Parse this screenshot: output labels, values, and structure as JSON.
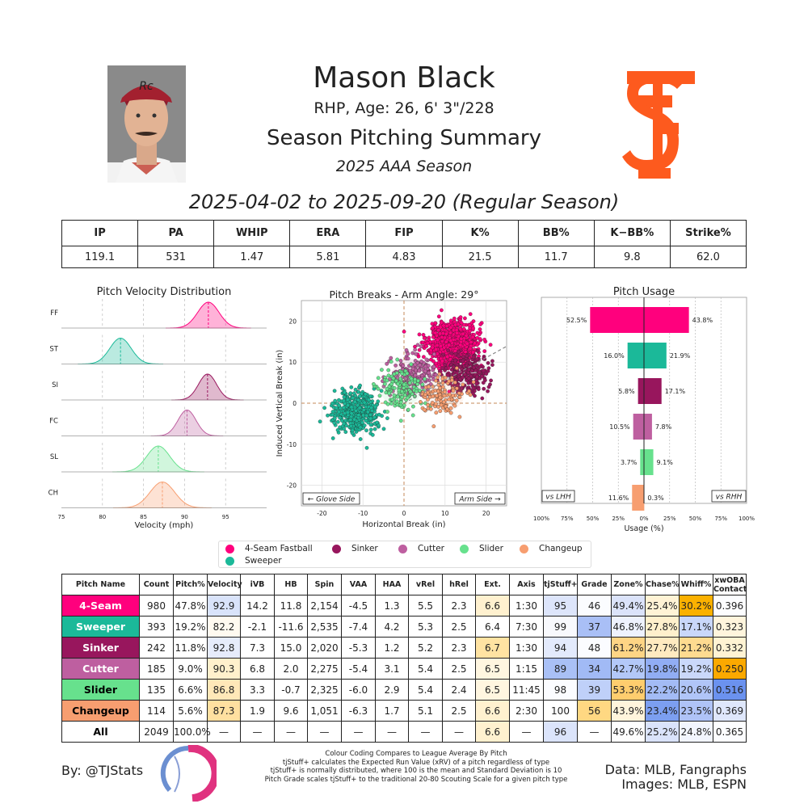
{
  "header": {
    "name": "Mason Black",
    "info": "RHP, Age: 26, 6' 3\"/228",
    "title": "Season Pitching Summary",
    "season": "2025 AAA Season",
    "date_range": "2025-04-02 to 2025-09-20 (Regular Season)"
  },
  "summary_stats": {
    "headers": [
      "IP",
      "PA",
      "WHIP",
      "ERA",
      "FIP",
      "K%",
      "BB%",
      "K−BB%",
      "Strike%"
    ],
    "values": [
      "119.1",
      "531",
      "1.47",
      "5.81",
      "4.83",
      "21.5",
      "11.7",
      "9.8",
      "62.0"
    ]
  },
  "colors": {
    "ff": "#FF007D",
    "st": "#1BB999",
    "si": "#98165D",
    "fc": "#BE5FA0",
    "sl": "#67E18D",
    "ch": "#F79E70",
    "team": "#FD5A1E"
  },
  "chart_data": [
    {
      "type": "area",
      "title": "Pitch Velocity Distribution",
      "xlabel": "Velocity (mph)",
      "xlim": [
        75,
        100
      ],
      "xticks": [
        "75",
        "80",
        "85",
        "90",
        "95"
      ],
      "series": [
        {
          "name": "FF",
          "mean": 92.9,
          "sd": 1.3
        },
        {
          "name": "ST",
          "mean": 82.2,
          "sd": 1.3
        },
        {
          "name": "SI",
          "mean": 92.8,
          "sd": 1.1
        },
        {
          "name": "FC",
          "mean": 90.3,
          "sd": 1.1
        },
        {
          "name": "SL",
          "mean": 86.8,
          "sd": 1.4
        },
        {
          "name": "CH",
          "mean": 87.3,
          "sd": 1.5
        }
      ]
    },
    {
      "type": "scatter",
      "title": "Pitch Breaks - Arm Angle: 29°",
      "xlabel": "Horizontal Break (in)",
      "ylabel": "Induced Vertical Break (in)",
      "xlim": [
        -25,
        25
      ],
      "ylim": [
        -25,
        25
      ],
      "xticks": [
        "-20",
        "-10",
        "0",
        "10",
        "20"
      ],
      "yticks": [
        "20",
        "10",
        "0",
        "-10",
        "-20"
      ],
      "left_label": "← Glove Side",
      "right_label": "Arm Side →",
      "arm_angle_deg": 29,
      "clusters": [
        {
          "pitch": "ff",
          "hb": 11.8,
          "ivb": 14.2,
          "n": 980
        },
        {
          "pitch": "st",
          "hb": -11.6,
          "ivb": -2.1,
          "n": 393
        },
        {
          "pitch": "si",
          "hb": 15.0,
          "ivb": 7.3,
          "n": 242
        },
        {
          "pitch": "fc",
          "hb": 2.0,
          "ivb": 6.8,
          "n": 185
        },
        {
          "pitch": "sl",
          "hb": -0.7,
          "ivb": 3.3,
          "n": 135
        },
        {
          "pitch": "ch",
          "hb": 9.6,
          "ivb": 1.9,
          "n": 114
        }
      ]
    },
    {
      "type": "bar",
      "title": "Pitch Usage",
      "xlabel": "Usage (%)",
      "xticks": [
        "100%",
        "75%",
        "50%",
        "25%",
        "0%",
        "25%",
        "50%",
        "75%",
        "100%"
      ],
      "xlim": [
        -100,
        100
      ],
      "lhh_label": "vs LHH",
      "rhh_label": "vs RHH",
      "categories": [
        "4-Seam Fastball",
        "Sweeper",
        "Sinker",
        "Cutter",
        "Slider",
        "Changeup"
      ],
      "series": [
        {
          "name": "vs LHH",
          "values": [
            52.5,
            16.0,
            5.8,
            10.5,
            3.7,
            11.6
          ],
          "labels": [
            "52.5%",
            "16.0%",
            "5.8%",
            "10.5%",
            "3.7%",
            "11.6%"
          ]
        },
        {
          "name": "vs RHH",
          "values": [
            43.8,
            21.9,
            17.1,
            7.8,
            9.1,
            0.3
          ],
          "labels": [
            "43.8%",
            "21.9%",
            "17.1%",
            "7.8%",
            "9.1%",
            "0.3%"
          ]
        }
      ]
    }
  ],
  "legend": [
    {
      "label": "4-Seam Fastball",
      "color": "#FF007D"
    },
    {
      "label": "Sinker",
      "color": "#98165D"
    },
    {
      "label": "Cutter",
      "color": "#BE5FA0"
    },
    {
      "label": "Slider",
      "color": "#67E18D"
    },
    {
      "label": "Changeup",
      "color": "#F79E70"
    },
    {
      "label": "Sweeper",
      "color": "#1BB999"
    }
  ],
  "pitch_table": {
    "headers": [
      "Pitch Name",
      "Count",
      "Pitch%",
      "Velocity",
      "iVB",
      "HB",
      "Spin",
      "VAA",
      "HAA",
      "vRel",
      "hRel",
      "Ext.",
      "Axis",
      "tjStuff+",
      "Grade",
      "Zone%",
      "Chase%",
      "Whiff%",
      "xwOBA Contact"
    ],
    "rows": [
      {
        "name": "4-Seam",
        "bg": "#FF007D",
        "fg": "#ffffff",
        "cells": [
          "980",
          "47.8%",
          "92.9",
          "14.2",
          "11.8",
          "2,154",
          "-4.5",
          "1.3",
          "5.5",
          "2.3",
          "6.6",
          "1:30",
          "95",
          "46",
          "49.4%",
          "25.4%",
          "30.2%",
          "0.396"
        ]
      },
      {
        "name": "Sweeper",
        "bg": "#1BB999",
        "fg": "#ffffff",
        "cells": [
          "393",
          "19.2%",
          "82.2",
          "-2.1",
          "-11.6",
          "2,535",
          "-7.4",
          "4.2",
          "5.3",
          "2.5",
          "6.4",
          "7:30",
          "99",
          "37",
          "46.8%",
          "27.8%",
          "17.1%",
          "0.323"
        ]
      },
      {
        "name": "Sinker",
        "bg": "#98165D",
        "fg": "#ffffff",
        "cells": [
          "242",
          "11.8%",
          "92.8",
          "7.3",
          "15.0",
          "2,020",
          "-5.3",
          "1.2",
          "5.2",
          "2.3",
          "6.7",
          "1:30",
          "94",
          "48",
          "61.2%",
          "27.7%",
          "21.2%",
          "0.332"
        ]
      },
      {
        "name": "Cutter",
        "bg": "#BE5FA0",
        "fg": "#ffffff",
        "cells": [
          "185",
          "9.0%",
          "90.3",
          "6.8",
          "2.0",
          "2,275",
          "-5.4",
          "3.1",
          "5.4",
          "2.5",
          "6.5",
          "1:15",
          "89",
          "34",
          "42.7%",
          "19.8%",
          "19.2%",
          "0.250"
        ]
      },
      {
        "name": "Slider",
        "bg": "#67E18D",
        "fg": "#000000",
        "cells": [
          "135",
          "6.6%",
          "86.8",
          "3.3",
          "-0.7",
          "2,325",
          "-6.0",
          "2.9",
          "5.4",
          "2.4",
          "6.5",
          "11:45",
          "98",
          "39",
          "53.3%",
          "22.2%",
          "20.6%",
          "0.516"
        ]
      },
      {
        "name": "Changeup",
        "bg": "#F79E70",
        "fg": "#000000",
        "cells": [
          "114",
          "5.6%",
          "87.3",
          "1.9",
          "9.6",
          "1,051",
          "-6.3",
          "1.7",
          "5.1",
          "2.5",
          "6.6",
          "2:30",
          "100",
          "56",
          "43.9%",
          "23.4%",
          "23.5%",
          "0.369"
        ]
      },
      {
        "name": "All",
        "bg": "#ffffff",
        "fg": "#000000",
        "cells": [
          "2049",
          "100.0%",
          "—",
          "—",
          "—",
          "—",
          "—",
          "—",
          "—",
          "—",
          "6.6",
          "—",
          "96",
          "—",
          "49.6%",
          "25.2%",
          "24.8%",
          "0.365"
        ]
      }
    ],
    "cell_colors": [
      [
        "",
        "",
        "#d9e3fa",
        "",
        "",
        "",
        "",
        "",
        "",
        "",
        "#fff1cf",
        "",
        "#dde5fb",
        "#fbfcff",
        "#dbe3fa",
        "#fff3d5",
        "#fbb100",
        "#fcfdff"
      ],
      [
        "",
        "",
        "#fffaf0",
        "",
        "",
        "",
        "",
        "",
        "",
        "",
        "#ffffff",
        "",
        "#f8f9fd",
        "#a9bff6",
        "#eef2fd",
        "#fff0cc",
        "#c9d7fa",
        "#fff5dd"
      ],
      [
        "",
        "",
        "#e6ecfb",
        "",
        "",
        "",
        "",
        "",
        "",
        "",
        "#ffe3a2",
        "",
        "#e3eafc",
        "#fbfcff",
        "#fed585",
        "#ffeac0",
        "#fedb90",
        "#fff3d3"
      ],
      [
        "",
        "",
        "#fff0cc",
        "",
        "",
        "",
        "",
        "",
        "",
        "",
        "#fff6e0",
        "",
        "#a9c0f6",
        "#a1baf5",
        "#b3c8f8",
        "#91adf4",
        "#cad8fa",
        "#fba900"
      ],
      [
        "",
        "",
        "#ffe8b8",
        "",
        "",
        "",
        "",
        "",
        "",
        "",
        "#fff6e0",
        "",
        "#fbfcff",
        "#bfd0f9",
        "#ffcd6e",
        "#a3bbf5",
        "#b0c5f8",
        "#6b92ef"
      ],
      [
        "",
        "",
        "#ffe0a0",
        "",
        "",
        "",
        "",
        "",
        "",
        "",
        "#fff1cf",
        "",
        "#ffffff",
        "#ffd882",
        "#fff5dc",
        "#7c9ff0",
        "#afc3f7",
        "#dfe7fb"
      ],
      [
        "",
        "",
        "",
        "",
        "",
        "",
        "",
        "",
        "",
        "",
        "#fff1cf",
        "",
        "#dbe4fb",
        "",
        "#fefefe",
        "#dae3fb",
        "#f2f5fe",
        "#fcfdff"
      ]
    ]
  },
  "footer": {
    "credit": "By: @TJStats",
    "notes": [
      "Colour Coding Compares to League Average By Pitch",
      "tjStuff+ calculates the Expected Run Value (xRV) of a pitch regardless of type",
      "tjStuff+ is normally distributed, where 100 is the mean and Standard Deviation is 10",
      "Pitch Grade scales tjStuff+ to the traditional 20-80 Scouting Scale for a given pitch type"
    ],
    "data_source": "Data: MLB, Fangraphs",
    "images_source": "Images: MLB, ESPN"
  }
}
